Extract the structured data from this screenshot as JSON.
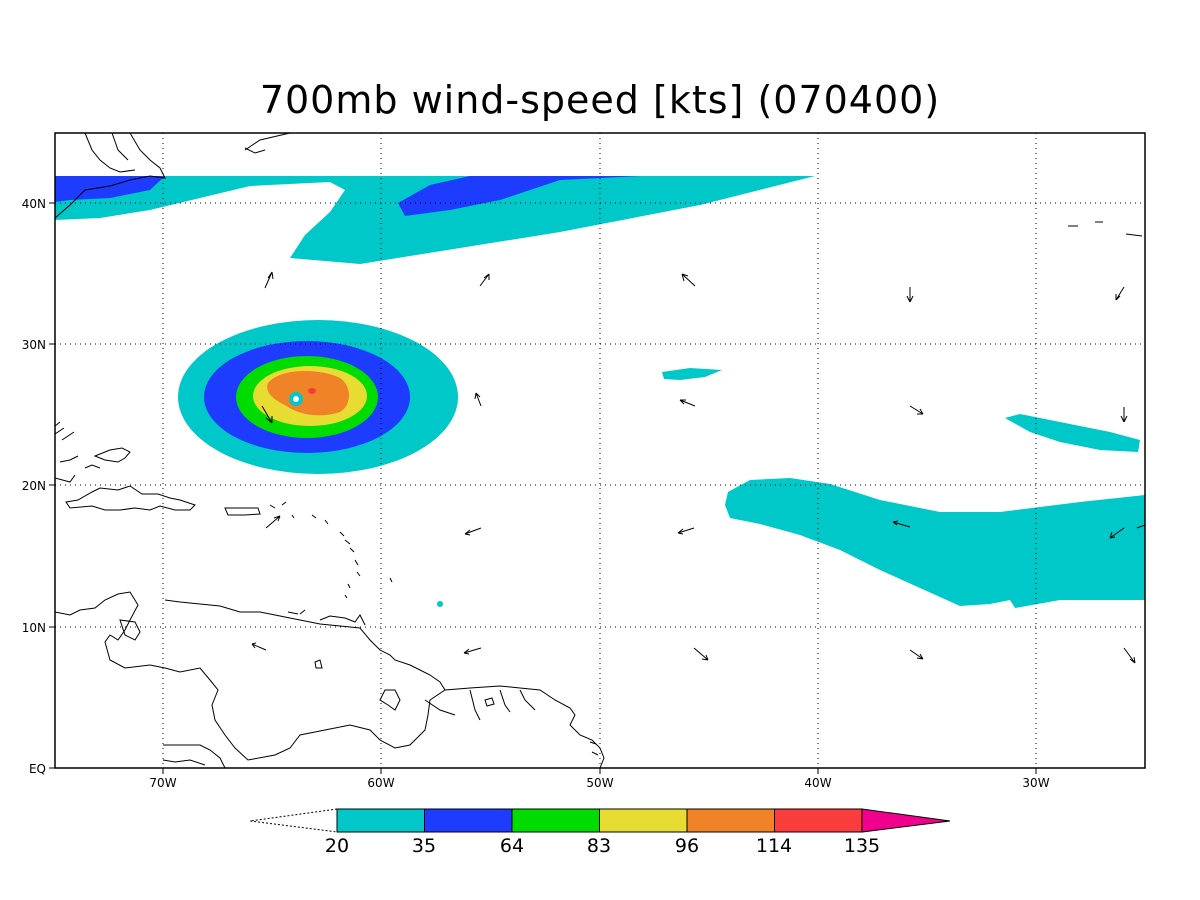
{
  "title": "700mb wind-speed [kts] (070400)",
  "axes": {
    "x_ticks": [
      "70W",
      "60W",
      "50W",
      "40W",
      "30W"
    ],
    "y_ticks": [
      "40N",
      "30N",
      "20N",
      "10N",
      "EQ"
    ]
  },
  "colorbar": {
    "labels": [
      "20",
      "35",
      "64",
      "83",
      "96",
      "114",
      "135"
    ],
    "colors": [
      "#00c8c8",
      "#1e3cff",
      "#00dc00",
      "#e6dc32",
      "#f08228",
      "#fa3c3c",
      "#f0008c"
    ]
  },
  "map": {
    "lon_range": [
      -75,
      -25
    ],
    "lat_range": [
      0,
      45
    ],
    "grid": "dotted",
    "features": [
      "coastlines",
      "wind-vectors",
      "hurricane-wind-contours"
    ]
  }
}
